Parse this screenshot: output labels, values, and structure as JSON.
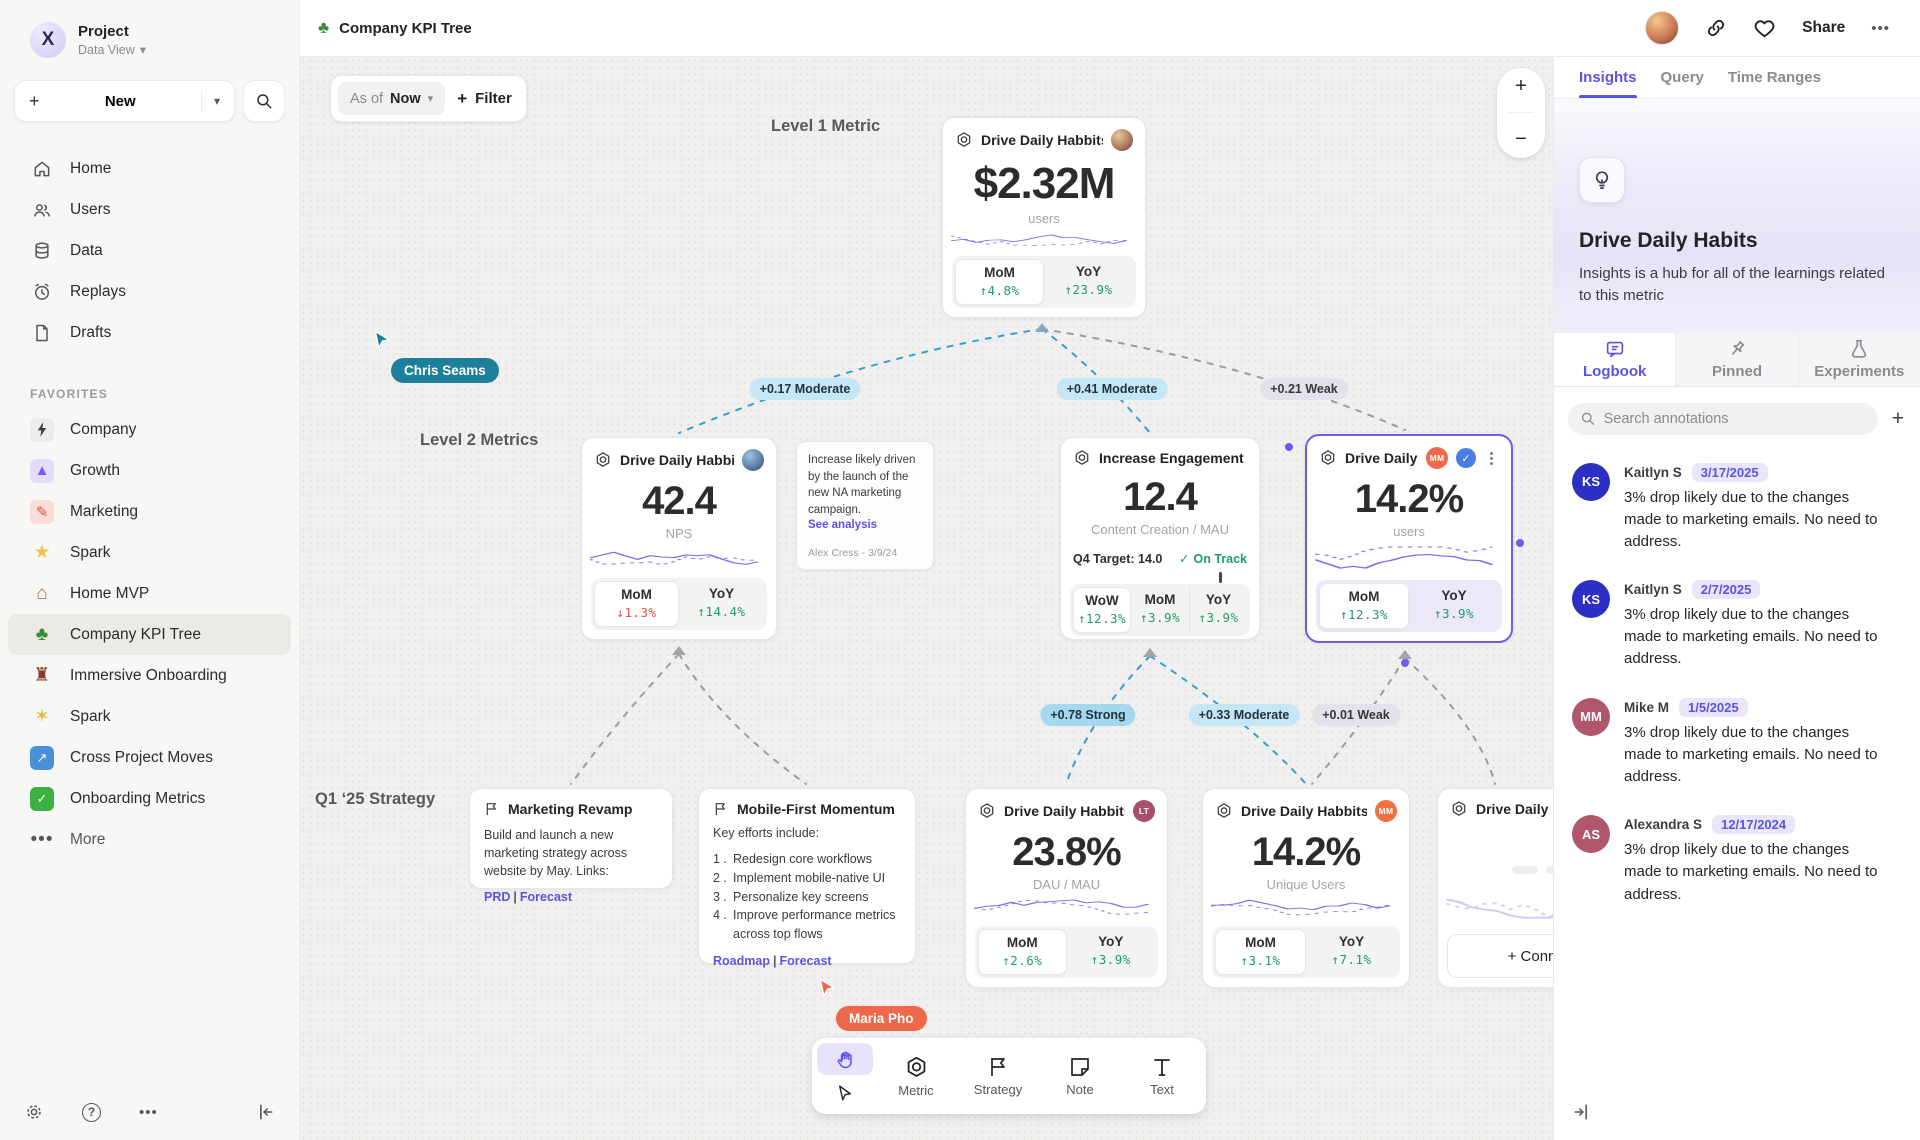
{
  "glyphs": {
    "plus": "+",
    "minus": "−",
    "chevron_down": "▾",
    "kebab": "⋮",
    "check": "✓",
    "dots": "•••"
  },
  "sidebar": {
    "project": {
      "name": "Project",
      "view": "Data View"
    },
    "new_label": "New",
    "nav": [
      {
        "label": "Home"
      },
      {
        "label": "Users"
      },
      {
        "label": "Data"
      },
      {
        "label": "Replays"
      },
      {
        "label": "Drafts"
      }
    ],
    "favorites_label": "FAVORITES",
    "favorites": [
      {
        "label": "Company"
      },
      {
        "label": "Growth",
        "glyph": "▲"
      },
      {
        "label": "Marketing",
        "glyph": "✎"
      },
      {
        "label": "Spark",
        "glyph": "★"
      },
      {
        "label": "Home MVP",
        "glyph": "⌂"
      },
      {
        "label": "Company KPI Tree",
        "glyph": "♣"
      },
      {
        "label": "Immersive Onboarding",
        "glyph": "♜"
      },
      {
        "label": "Spark",
        "glyph": "✶"
      },
      {
        "label": "Cross Project Moves",
        "glyph": "↗"
      },
      {
        "label": "Onboarding Metrics",
        "glyph": "✓"
      }
    ],
    "more_label": "More"
  },
  "topbar": {
    "title": "Company KPI Tree",
    "tree_glyph": "♣",
    "share_label": "Share"
  },
  "canvas": {
    "asof_prefix": "As of",
    "asof_value": "Now",
    "filter_label": "Filter",
    "level1_label": "Level 1 Metric",
    "level2_label": "Level 2 Metrics",
    "q1_label": "Q1 ‘25 Strategy",
    "edges": [
      {
        "label": "+0.17 Moderate",
        "tone": "moderate"
      },
      {
        "label": "+0.41 Moderate",
        "tone": "moderate"
      },
      {
        "label": "+0.21 Weak",
        "tone": "weak"
      },
      {
        "label": "+0.78 Strong",
        "tone": "strong"
      },
      {
        "label": "+0.33 Moderate",
        "tone": "moderate"
      },
      {
        "label": "+0.01 Weak",
        "tone": "weak"
      }
    ],
    "cursors": [
      {
        "name": "Chris Seams"
      },
      {
        "name": "Maria Pho"
      }
    ],
    "toolbar": {
      "items": [
        {
          "label": "Metric"
        },
        {
          "label": "Strategy"
        },
        {
          "label": "Note"
        },
        {
          "label": "Text"
        }
      ]
    }
  },
  "cards": {
    "l1": {
      "title": "Drive Daily Habbits",
      "value": "$2.32M",
      "unit": "users",
      "stats": [
        {
          "label": "MoM",
          "value": "↑4.8%",
          "dir": "up"
        },
        {
          "label": "YoY",
          "value": "↑23.9%",
          "dir": "up"
        }
      ]
    },
    "nps": {
      "title": "Drive Daily Habbits",
      "value": "42.4",
      "unit": "NPS",
      "stats": [
        {
          "label": "MoM",
          "value": "↓1.3%",
          "dir": "down"
        },
        {
          "label": "YoY",
          "value": "↑14.4%",
          "dir": "up"
        }
      ]
    },
    "eng": {
      "title": "Increase Engagement",
      "value": "12.4",
      "unit": "Content Creation / MAU",
      "target": "Q4 Target: 14.0",
      "status": "On Track",
      "stats": [
        {
          "label": "WoW",
          "value": "↑12.3%",
          "dir": "up"
        },
        {
          "label": "MoM",
          "value": "↑3.9%",
          "dir": "up"
        },
        {
          "label": "YoY",
          "value": "↑3.9%",
          "dir": "up"
        }
      ]
    },
    "sel": {
      "title": "Drive Daily Habb..",
      "badge": "MM",
      "value": "14.2%",
      "unit": "users",
      "stats": [
        {
          "label": "MoM",
          "value": "↑12.3%",
          "dir": "up"
        },
        {
          "label": "YoY",
          "value": "↑3.9%",
          "dir": "up"
        }
      ]
    },
    "dau": {
      "title": "Drive Daily Habbits",
      "badge": "LT",
      "value": "23.8%",
      "unit": "DAU / MAU",
      "stats": [
        {
          "label": "MoM",
          "value": "↑2.6%",
          "dir": "up"
        },
        {
          "label": "YoY",
          "value": "↑3.9%",
          "dir": "up"
        }
      ]
    },
    "uniq": {
      "title": "Drive Daily Habbits",
      "badge": "MM",
      "value": "14.2%",
      "unit": "Unique Users",
      "stats": [
        {
          "label": "MoM",
          "value": "↑3.1%",
          "dir": "up"
        },
        {
          "label": "YoY",
          "value": "↑7.1%",
          "dir": "up"
        }
      ]
    },
    "partial": {
      "title": "Drive Daily Hab..",
      "connect_label": "+ Connect"
    }
  },
  "note": {
    "text": "Increase likely driven by the launch of the new NA marketing campaign.",
    "link": "See analysis",
    "byline": "Alex Cress - 3/9/24"
  },
  "strategies": [
    {
      "title": "Marketing Revamp",
      "body": "Build and launch a new marketing strategy across website by May. Links:",
      "link1": "PRD",
      "sep": "|",
      "link2": "Forecast"
    },
    {
      "title": "Mobile-First Momentum",
      "body": "Key efforts include:",
      "list": [
        "Redesign core workflows",
        "Implement mobile-native UI",
        "Personalize key screens",
        "Improve performance metrics across top flows"
      ],
      "link1": "Roadmap",
      "sep": "|",
      "link2": "Forecast"
    }
  ],
  "panel": {
    "tabs": [
      {
        "label": "Insights"
      },
      {
        "label": "Query"
      },
      {
        "label": "Time Ranges"
      }
    ],
    "hero": {
      "title": "Drive Daily Habits",
      "desc": "Insights is a hub for all of the learnings related to this metric"
    },
    "subtabs": [
      {
        "label": "Logbook"
      },
      {
        "label": "Pinned"
      },
      {
        "label": "Experiments"
      }
    ],
    "search_placeholder": "Search annotations",
    "annotations": [
      {
        "initials": "KS",
        "color": "#2b2fc4",
        "name": "Kaitlyn S",
        "date": "3/17/2025",
        "text": "3% drop likely due to the changes made to marketing emails. No need to address."
      },
      {
        "initials": "KS",
        "color": "#2b2fc4",
        "name": "Kaitlyn S",
        "date": "2/7/2025",
        "text": "3% drop likely due to the changes made to marketing emails. No need to address."
      },
      {
        "initials": "MM",
        "color": "#b0566d",
        "name": "Mike M",
        "date": "1/5/2025",
        "text": "3% drop likely due to the changes made to marketing emails. No need to address."
      },
      {
        "initials": "AS",
        "color": "#b0566d",
        "name": "Alexandra S",
        "date": "12/17/2024",
        "text": "3% drop likely due to the changes made to marketing emails. No need to address."
      }
    ]
  }
}
